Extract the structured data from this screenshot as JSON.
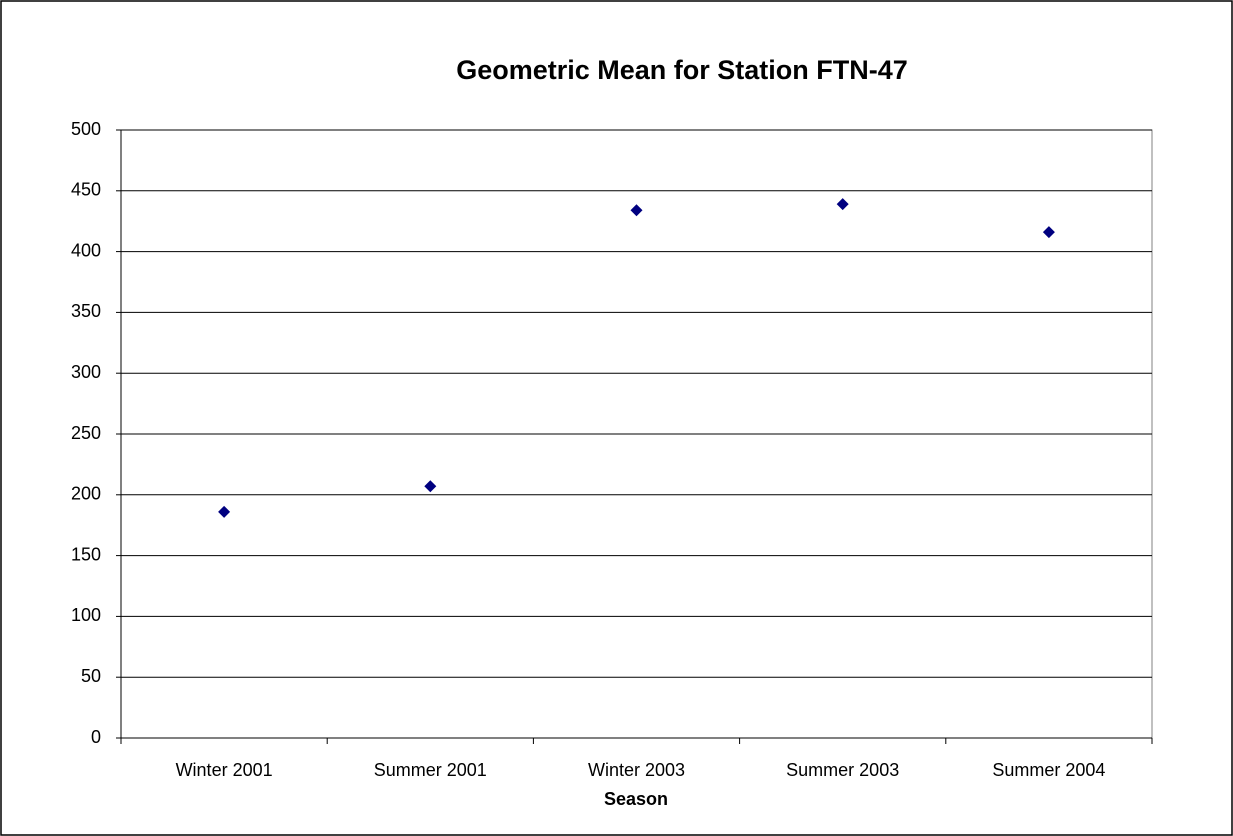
{
  "chart_data": {
    "type": "scatter",
    "title": "Geometric Mean for Station FTN-47",
    "x_label": "Season",
    "categories": [
      "Winter 2001",
      "Summer 2001",
      "Winter 2003",
      "Summer 2003",
      "Summer 2004"
    ],
    "values": [
      186,
      207,
      434,
      439,
      416
    ],
    "color": "#000080",
    "ylim": [
      0,
      500
    ],
    "yticks": [
      0,
      50,
      100,
      150,
      200,
      250,
      300,
      350,
      400,
      450,
      500
    ],
    "grid": true
  }
}
